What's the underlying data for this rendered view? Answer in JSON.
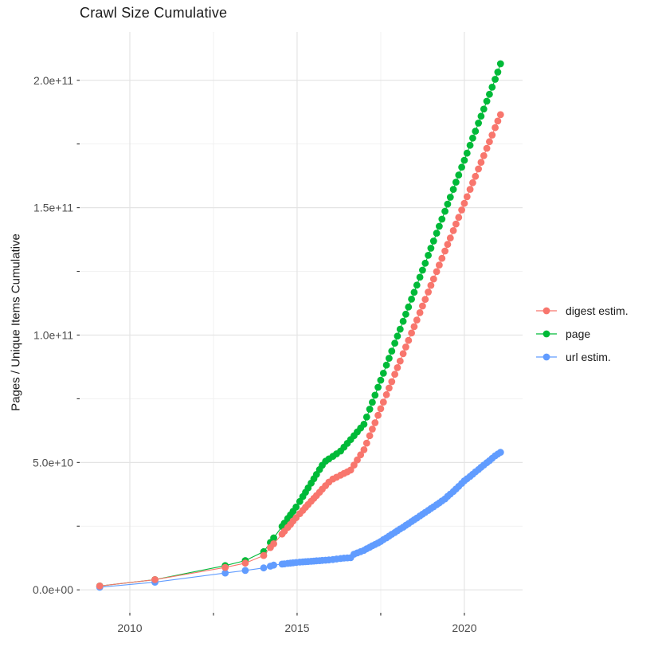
{
  "title": "Crawl Size Cumulative",
  "y_axis_title": "Pages / Unique Items Cumulative",
  "legend": {
    "items": [
      {
        "label": "digest estim.",
        "color": "#F8766D"
      },
      {
        "label": "page",
        "color": "#00BA38"
      },
      {
        "label": "url estim.",
        "color": "#619CFF"
      }
    ]
  },
  "colors": {
    "digest": "#F8766D",
    "page": "#00BA38",
    "url": "#619CFF",
    "grid_major": "#E4E4E4",
    "grid_minor": "#F0F0F0",
    "tick": "#333333",
    "axis_text": "#4D4D4D",
    "text": "#1A1A1A",
    "background": "#FFFFFF"
  },
  "chart_data": {
    "type": "scatter",
    "title": "Crawl Size Cumulative",
    "xlabel": "",
    "ylabel": "Pages / Unique Items Cumulative",
    "grid": true,
    "legend_position": "right",
    "xlim": [
      2008.5,
      2021.74
    ],
    "ylim_e9": [
      -9,
      219
    ],
    "x_ticks": {
      "major": [
        2010,
        2015,
        2020
      ],
      "labels": [
        "2010",
        "2015",
        "2020"
      ],
      "minor": [
        2012.5,
        2017.5
      ]
    },
    "y_ticks": {
      "major_e9": [
        0,
        50,
        100,
        150,
        200
      ],
      "labels": [
        "0.0e+00",
        "5.0e+10",
        "1.0e+11",
        "1.5e+11",
        "2.0e+11"
      ],
      "minor_e9": [
        25,
        75,
        125,
        175
      ]
    },
    "units": "series values are billions (1e9) of pages / unique items, cumulative per crawl",
    "x_years": [
      2009.1,
      2010.75,
      2012.85,
      2013.45,
      2014.0,
      2014.2,
      2014.3,
      2014.55,
      2014.62,
      2014.72,
      2014.8,
      2014.88,
      2014.97,
      2015.08,
      2015.17,
      2015.25,
      2015.33,
      2015.42,
      2015.5,
      2015.58,
      2015.67,
      2015.75,
      2015.85,
      2015.95,
      2016.07,
      2016.18,
      2016.3,
      2016.4,
      2016.5,
      2016.6,
      2016.7,
      2016.8,
      2016.9,
      2017.0,
      2017.08,
      2017.17,
      2017.25,
      2017.33,
      2017.42,
      2017.5,
      2017.58,
      2017.67,
      2017.75,
      2017.83,
      2017.92,
      2018.0,
      2018.08,
      2018.17,
      2018.25,
      2018.33,
      2018.42,
      2018.5,
      2018.58,
      2018.67,
      2018.75,
      2018.83,
      2018.92,
      2019.0,
      2019.08,
      2019.17,
      2019.25,
      2019.33,
      2019.42,
      2019.5,
      2019.58,
      2019.67,
      2019.75,
      2019.83,
      2019.92,
      2020.0,
      2020.08,
      2020.17,
      2020.25,
      2020.33,
      2020.42,
      2020.5,
      2020.58,
      2020.67,
      2020.75,
      2020.83,
      2020.92,
      2021.0,
      2021.08
    ],
    "series": [
      {
        "name": "page",
        "color": "#00BA38",
        "values_e9": [
          1.5,
          4,
          9.5,
          11.5,
          15,
          18.6,
          20.4,
          24.9,
          26.2,
          28.0,
          29.4,
          30.8,
          32.5,
          34.7,
          36.6,
          38.3,
          40.0,
          41.9,
          43.6,
          45.3,
          47.2,
          48.9,
          50.5,
          51.4,
          52.4,
          53.4,
          54.5,
          56.0,
          57.5,
          59.0,
          60.5,
          62.0,
          63.5,
          65.0,
          67.8,
          70.9,
          73.6,
          76.4,
          79.5,
          82.3,
          85.0,
          88.2,
          90.9,
          93.7,
          96.8,
          99.6,
          102.3,
          105.4,
          108.2,
          111.0,
          114.1,
          116.8,
          119.6,
          122.7,
          125.5,
          128.2,
          131.3,
          134.1,
          136.9,
          140.0,
          142.7,
          145.5,
          148.6,
          151.4,
          154.1,
          157.2,
          160.0,
          162.8,
          165.9,
          168.6,
          171.4,
          174.5,
          177.3,
          180.0,
          183.2,
          185.9,
          188.7,
          191.8,
          194.5,
          197.3,
          200.4,
          203.2,
          206.5
        ]
      },
      {
        "name": "url estim.",
        "color": "#619CFF",
        "values_e9": [
          1.0,
          3.0,
          6.6,
          7.6,
          8.6,
          9.3,
          9.7,
          10.1,
          10.2,
          10.4,
          10.5,
          10.6,
          10.75,
          10.9,
          11.0,
          11.05,
          11.1,
          11.2,
          11.3,
          11.4,
          11.45,
          11.55,
          11.65,
          11.75,
          11.9,
          12.1,
          12.3,
          12.45,
          12.55,
          12.6,
          14.0,
          14.5,
          15.0,
          15.5,
          16.1,
          16.7,
          17.3,
          17.8,
          18.4,
          19.0,
          19.7,
          20.4,
          21.1,
          21.8,
          22.5,
          23.2,
          23.9,
          24.6,
          25.3,
          26.0,
          26.8,
          27.5,
          28.2,
          29.0,
          29.7,
          30.4,
          31.2,
          31.9,
          32.6,
          33.4,
          34.1,
          34.9,
          35.7,
          36.7,
          37.6,
          38.6,
          39.6,
          40.6,
          41.8,
          42.8,
          43.6,
          44.5,
          45.4,
          46.3,
          47.2,
          48.1,
          49.0,
          49.9,
          50.7,
          51.6,
          52.6,
          53.3,
          54.0
        ]
      },
      {
        "name": "digest estim.",
        "color": "#F8766D",
        "values_e9": [
          1.5,
          4,
          8.8,
          10.5,
          13.5,
          16.6,
          18.1,
          21.9,
          23.0,
          24.5,
          25.7,
          27.0,
          28.3,
          29.9,
          31.2,
          32.4,
          33.5,
          34.8,
          35.9,
          37.0,
          38.3,
          39.5,
          40.9,
          42.3,
          43.5,
          44.2,
          45.0,
          45.7,
          46.3,
          47.0,
          49.0,
          51.0,
          53.0,
          55.0,
          57.6,
          60.5,
          63.1,
          65.6,
          68.5,
          71.1,
          73.7,
          76.6,
          79.2,
          81.7,
          84.6,
          87.2,
          89.8,
          92.7,
          95.3,
          97.9,
          100.8,
          103.3,
          105.9,
          108.8,
          111.4,
          114.0,
          116.9,
          119.5,
          122.0,
          124.9,
          127.5,
          130.1,
          133.0,
          135.6,
          138.1,
          141.0,
          143.6,
          146.2,
          149.1,
          151.7,
          154.3,
          157.2,
          159.8,
          162.3,
          165.2,
          167.8,
          170.4,
          173.3,
          175.9,
          178.5,
          181.4,
          184.0,
          186.5
        ]
      }
    ]
  }
}
